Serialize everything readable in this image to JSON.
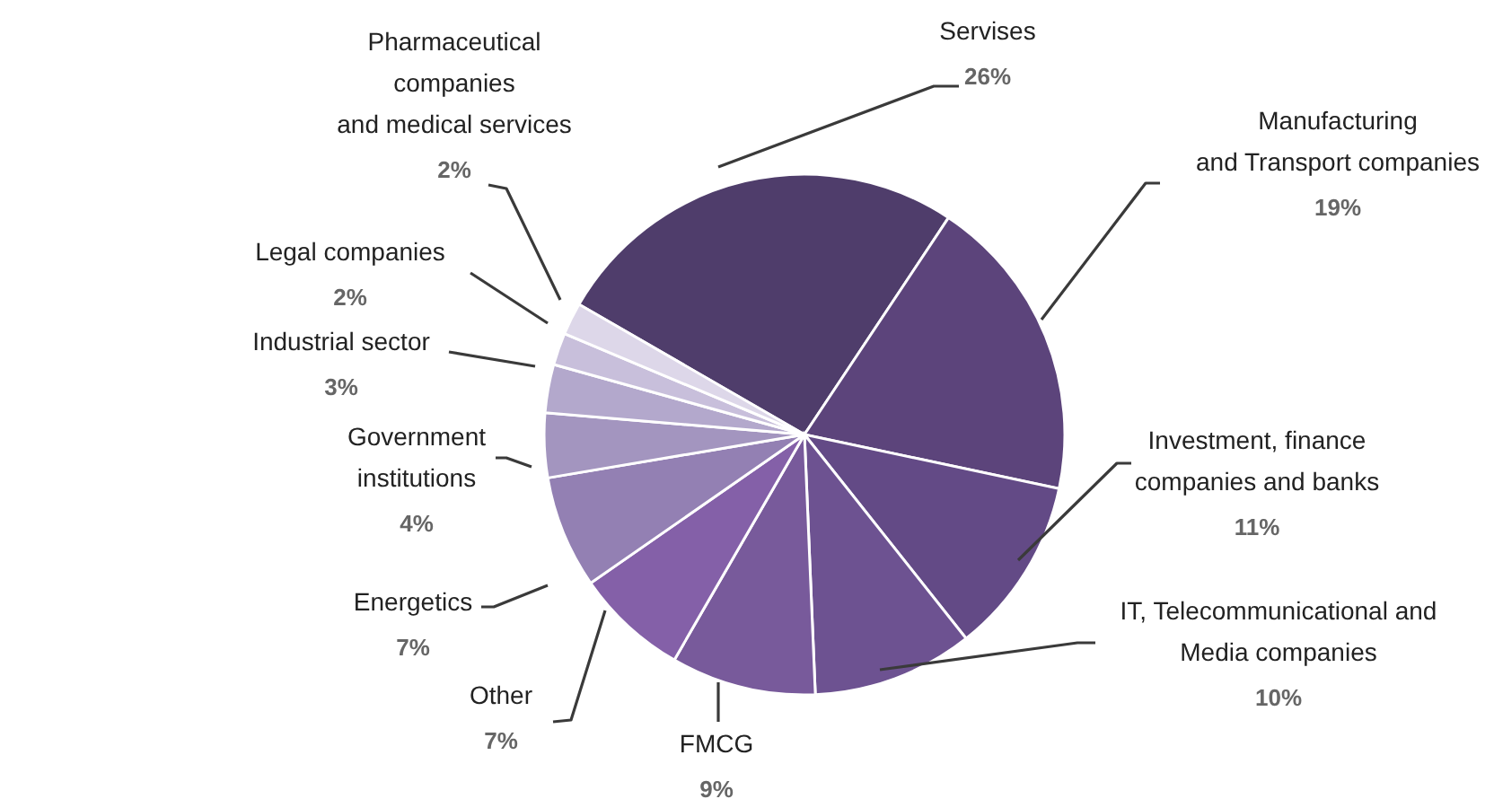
{
  "chart_data": {
    "type": "pie",
    "categories": [
      "Servises",
      "Manufacturing\nand Transport companies",
      "Investment, finance\ncompanies and banks",
      "IT, Telecommunicational and\nMedia companies",
      "FMCG",
      "Other",
      "Energetics",
      "Government\ninstitutions",
      "Industrial sector",
      "Legal companies",
      "Pharmaceutical\ncompanies\nand medical services"
    ],
    "values": [
      26,
      19,
      11,
      10,
      9,
      7,
      7,
      4,
      3,
      2,
      2
    ],
    "colors": [
      "#4f3d6b",
      "#5c447b",
      "#634a86",
      "#6d5291",
      "#785a9b",
      "#8460a8",
      "#9380b3",
      "#a395bf",
      "#b3a8cc",
      "#c8bfdb",
      "#ddd7e9"
    ],
    "value_labels": [
      "26%",
      "19%",
      "11%",
      "10%",
      "9%",
      "7%",
      "7%",
      "4%",
      "3%",
      "2%",
      "2%"
    ]
  }
}
